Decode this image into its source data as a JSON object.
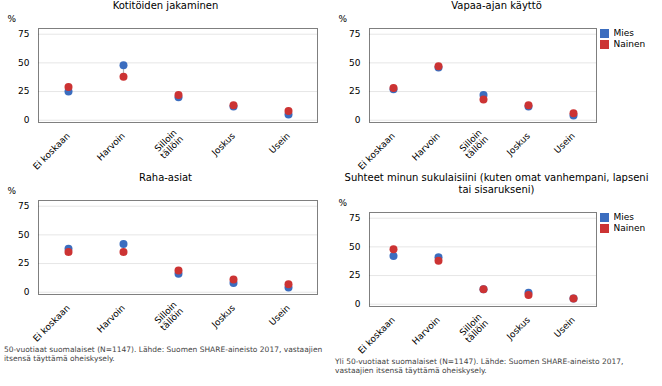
{
  "chart_data": [
    {
      "type": "dumbbell",
      "title": "Kotitöiden jakaminen",
      "categories": [
        "Ei koskaan",
        "Harvoin",
        "Silloin\ntällöin",
        "Joskus",
        "Usein"
      ],
      "series": [
        {
          "name": "Mies",
          "color": "#3B6DBF",
          "values": [
            25,
            48,
            20,
            12,
            5
          ]
        },
        {
          "name": "Nainen",
          "color": "#CC3333",
          "values": [
            29,
            38,
            22,
            13,
            8
          ]
        }
      ],
      "ylabel": "%",
      "ylim": [
        -2,
        80
      ],
      "yticks": [
        0,
        25,
        50,
        75
      ],
      "grid": true
    },
    {
      "type": "dumbbell",
      "title": "Vapaa-ajan käyttö",
      "categories": [
        "Ei koskaan",
        "Harvoin",
        "Silloin\ntällöin",
        "Joskus",
        "Usein"
      ],
      "series": [
        {
          "name": "Mies",
          "color": "#3B6DBF",
          "values": [
            27,
            46,
            22,
            12,
            4
          ]
        },
        {
          "name": "Nainen",
          "color": "#CC3333",
          "values": [
            28,
            47,
            18,
            13,
            6
          ]
        }
      ],
      "ylabel": "%",
      "ylim": [
        -2,
        80
      ],
      "yticks": [
        0,
        25,
        50,
        75
      ],
      "grid": true,
      "legend": "upper right"
    },
    {
      "type": "dumbbell",
      "title": "Raha-asiat",
      "categories": [
        "Ei koskaan",
        "Harvoin",
        "Silloin\ntällöin",
        "Joskus",
        "Usein"
      ],
      "series": [
        {
          "name": "Mies",
          "color": "#3B6DBF",
          "values": [
            38,
            42,
            16,
            8,
            4
          ]
        },
        {
          "name": "Nainen",
          "color": "#CC3333",
          "values": [
            35,
            35,
            19,
            11,
            7
          ]
        }
      ],
      "ylabel": "%",
      "ylim": [
        -2,
        80
      ],
      "yticks": [
        0,
        25,
        50,
        75
      ],
      "grid": true,
      "annotations": [
        "50-vuotiaat suomalaiset (N=1147). Lähde: Suomen SHARE-aineisto 2017, vastaajien itsensä täyttämä oheiskysely."
      ]
    },
    {
      "type": "dumbbell",
      "title": "Suhteet minun sukulaisiini (kuten omat vanhempani, lapseni\ntai sisarukseni)",
      "categories": [
        "Ei koskaan",
        "Harvoin",
        "Silloin\ntällöin",
        "Joskus",
        "Usein"
      ],
      "series": [
        {
          "name": "Mies",
          "color": "#3B6DBF",
          "values": [
            42,
            41,
            13,
            10,
            5
          ]
        },
        {
          "name": "Nainen",
          "color": "#CC3333",
          "values": [
            48,
            38,
            13,
            8,
            5
          ]
        }
      ],
      "ylabel": "%",
      "ylim": [
        -2,
        80
      ],
      "yticks": [
        0,
        25,
        50,
        75
      ],
      "grid": true,
      "legend": "upper right",
      "annotations": [
        "Yli 50-vuotiaat suomalaiset (N=1147). Lähde: Suomen SHARE-aineisto 2017, vastaajien itsensä täyttämä oheiskysely."
      ]
    }
  ]
}
